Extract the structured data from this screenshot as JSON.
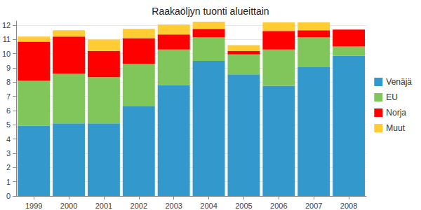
{
  "chart_data": {
    "type": "bar",
    "title": "Raakaöljyn tuonti alueittain",
    "categories": [
      "1999",
      "2000",
      "2001",
      "2002",
      "2003",
      "2004",
      "2005",
      "2006",
      "2007",
      "2008"
    ],
    "series": [
      {
        "name": "Venäjä",
        "color": "#3399cc",
        "values": [
          4.95,
          5.1,
          5.1,
          6.3,
          7.8,
          9.5,
          8.55,
          7.75,
          9.05,
          9.85
        ]
      },
      {
        "name": "EU",
        "color": "#80c65a",
        "values": [
          3.15,
          3.5,
          3.25,
          3.0,
          2.5,
          1.65,
          1.4,
          2.55,
          2.1,
          0.65
        ]
      },
      {
        "name": "Norja",
        "color": "#ff0000",
        "values": [
          2.75,
          2.6,
          1.85,
          1.8,
          1.05,
          0.6,
          0.25,
          1.3,
          0.5,
          1.2
        ]
      },
      {
        "name": "Muut",
        "color": "#ffcc33",
        "values": [
          0.35,
          0.45,
          0.8,
          0.65,
          0.7,
          0.5,
          0.4,
          0.6,
          0.55,
          0
        ]
      }
    ],
    "ylim": [
      0,
      12.3
    ],
    "yticks": [
      0,
      1,
      2,
      3,
      4,
      5,
      6,
      7,
      8,
      9,
      10,
      11,
      12
    ],
    "stacked": true,
    "grid": true,
    "legend": "right"
  }
}
